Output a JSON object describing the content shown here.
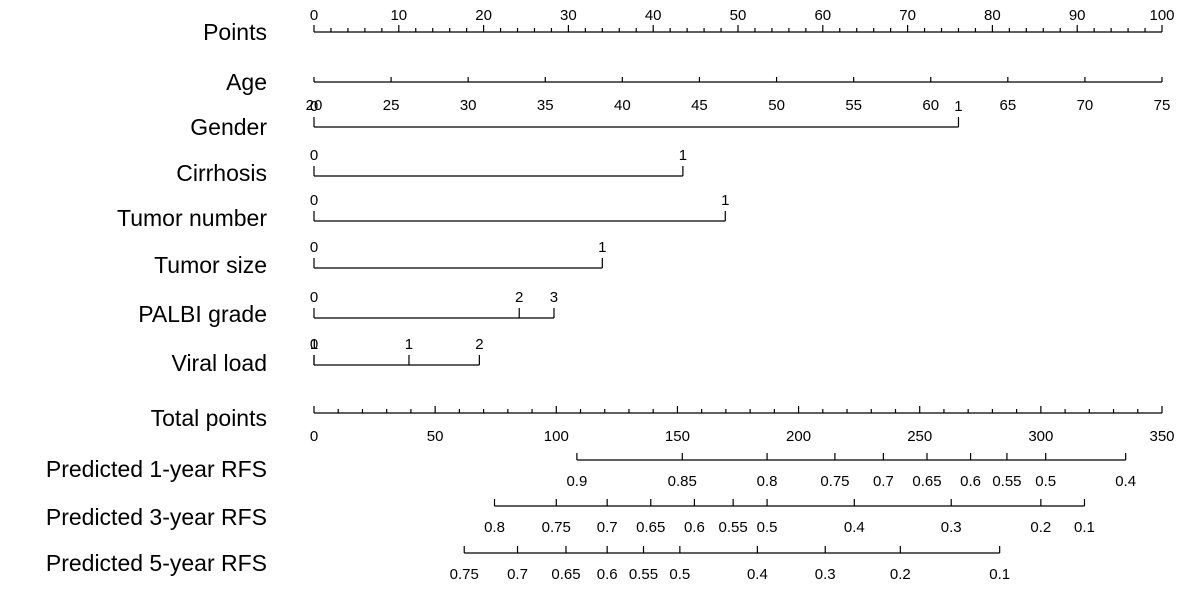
{
  "chart_data": {
    "type": "nomogram",
    "rows": [
      {
        "label": "Points",
        "kind": "points",
        "min": 0,
        "max": 100,
        "major_ticks": [
          0,
          10,
          20,
          30,
          40,
          50,
          60,
          70,
          80,
          90,
          100
        ],
        "minor_step": 2
      },
      {
        "label": "Age",
        "kind": "continuous",
        "labels_below": true,
        "values": [
          20,
          25,
          30,
          35,
          40,
          45,
          50,
          55,
          60,
          65,
          70,
          75
        ],
        "points": [
          0,
          9.09,
          18.18,
          27.27,
          36.36,
          45.45,
          54.55,
          63.64,
          72.73,
          81.82,
          90.91,
          100
        ]
      },
      {
        "label": "Gender",
        "kind": "categorical",
        "levels": [
          {
            "text": "0",
            "points": 0
          },
          {
            "text": "1",
            "points": 76
          }
        ]
      },
      {
        "label": "Cirrhosis",
        "kind": "categorical",
        "levels": [
          {
            "text": "0",
            "points": 0
          },
          {
            "text": "1",
            "points": 43.5
          }
        ]
      },
      {
        "label": "Tumor number",
        "kind": "categorical",
        "levels": [
          {
            "text": "0",
            "points": 0
          },
          {
            "text": "1",
            "points": 48.5
          }
        ]
      },
      {
        "label": "Tumor size",
        "kind": "categorical",
        "levels": [
          {
            "text": "0",
            "points": 0
          },
          {
            "text": "1",
            "points": 34
          }
        ]
      },
      {
        "label": "PALBI grade",
        "kind": "categorical",
        "levels": [
          {
            "text": "0",
            "points": 0
          },
          {
            "text": "2",
            "points": 24.2,
            "above": true
          },
          {
            "text": "3",
            "points": 28.3
          }
        ]
      },
      {
        "label": "Viral load",
        "kind": "categorical",
        "levels": [
          {
            "text": "1",
            "points": 0,
            "above": true
          },
          {
            "text": "1",
            "points": 11.2,
            "above": true
          },
          {
            "text": "0",
            "points": 0
          },
          {
            "text": "2",
            "points": 19.5
          }
        ]
      },
      {
        "label": "Total points",
        "kind": "total",
        "min": 0,
        "max": 350,
        "major_ticks": [
          0,
          50,
          100,
          150,
          200,
          250,
          300,
          350
        ],
        "minor_step": 10
      },
      {
        "label": "Predicted 1-year RFS",
        "kind": "probability",
        "ticks": [
          {
            "value": "0.9",
            "total": 108.5
          },
          {
            "value": "0.85",
            "total": 152
          },
          {
            "value": "0.8",
            "total": 187
          },
          {
            "value": "0.75",
            "total": 215
          },
          {
            "value": "0.7",
            "total": 235
          },
          {
            "value": "0.65",
            "total": 253
          },
          {
            "value": "0.6",
            "total": 271
          },
          {
            "value": "0.55",
            "total": 286
          },
          {
            "value": "0.5",
            "total": 302
          },
          {
            "value": "0.4",
            "total": 335
          }
        ]
      },
      {
        "label": "Predicted 3-year RFS",
        "kind": "probability",
        "ticks": [
          {
            "value": "0.8",
            "total": 74.5
          },
          {
            "value": "0.75",
            "total": 100
          },
          {
            "value": "0.7",
            "total": 121
          },
          {
            "value": "0.65",
            "total": 139
          },
          {
            "value": "0.6",
            "total": 157
          },
          {
            "value": "0.55",
            "total": 173
          },
          {
            "value": "0.5",
            "total": 187
          },
          {
            "value": "0.4",
            "total": 223
          },
          {
            "value": "0.3",
            "total": 263
          },
          {
            "value": "0.2",
            "total": 300
          },
          {
            "value": "0.1",
            "total": 318
          }
        ]
      },
      {
        "label": "Predicted 5-year RFS",
        "kind": "probability",
        "ticks": [
          {
            "value": "0.75",
            "total": 62
          },
          {
            "value": "0.7",
            "total": 84
          },
          {
            "value": "0.65",
            "total": 104
          },
          {
            "value": "0.6",
            "total": 121
          },
          {
            "value": "0.55",
            "total": 136
          },
          {
            "value": "0.5",
            "total": 151
          },
          {
            "value": "0.4",
            "total": 183
          },
          {
            "value": "0.3",
            "total": 211
          },
          {
            "value": "0.2",
            "total": 242
          },
          {
            "value": "0.1",
            "total": 283
          }
        ]
      }
    ]
  }
}
